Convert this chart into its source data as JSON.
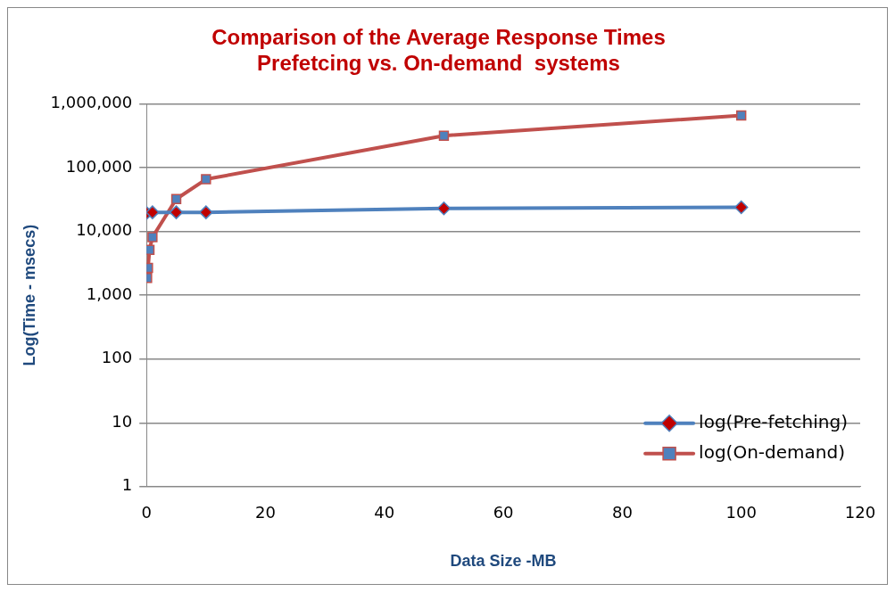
{
  "chart_data": {
    "type": "line",
    "title": "Comparison of the Average Response Times\nPrefetcing vs. On-demand  systems",
    "xlabel": "Data Size -MB",
    "ylabel": "Log(Time - msecs)",
    "log": "y",
    "xlim": [
      0,
      120
    ],
    "xticks": [
      0,
      20,
      40,
      60,
      80,
      100,
      120
    ],
    "ylim": [
      1,
      1000000
    ],
    "yticks": [
      {
        "value": 1,
        "label": "1"
      },
      {
        "value": 10,
        "label": "10"
      },
      {
        "value": 100,
        "label": "100"
      },
      {
        "value": 1000,
        "label": "1,000"
      },
      {
        "value": 10000,
        "label": "10,000"
      },
      {
        "value": 100000,
        "label": "100,000"
      },
      {
        "value": 1000000,
        "label": "1,000,000"
      }
    ],
    "grid": "y",
    "legend": "bottom right",
    "line_style": "solid",
    "series": [
      {
        "name": "log(Pre-fetching)",
        "color": "#4f81bd",
        "marker": "diamond",
        "colors": [
          "#c00000",
          "#c00000",
          "#c00000",
          "#c00000",
          "#c00000",
          "#c00000",
          "#c00000",
          "#c00000"
        ],
        "x": [
          0,
          0.25,
          0.5,
          1,
          5,
          10,
          50,
          100
        ],
        "values": [
          19500,
          null,
          null,
          20000,
          20000,
          20000,
          23000,
          24000
        ]
      },
      {
        "name": "log(On-demand)",
        "color": "#c0504d",
        "marker": "square",
        "colors": [
          "#4f81bd",
          "#4f81bd",
          "#4f81bd",
          "#4f81bd",
          "#4f81bd",
          "#4f81bd",
          "#4f81bd",
          "#4f81bd"
        ],
        "x": [
          0.1,
          0.25,
          0.5,
          1,
          5,
          10,
          50,
          100
        ],
        "values": [
          1870,
          2680,
          5150,
          8150,
          32300,
          66000,
          318000,
          660000
        ]
      }
    ]
  }
}
